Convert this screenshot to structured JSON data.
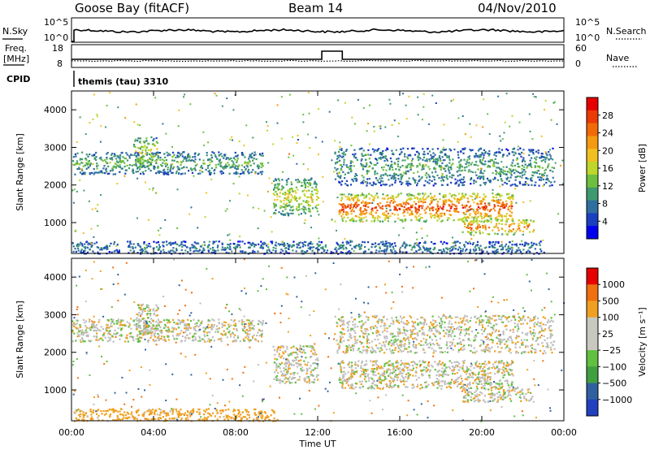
{
  "header": {
    "station": "Goose Bay (fitACF)",
    "beam": "Beam 14",
    "date": "04/Nov/2010"
  },
  "noise_panel": {
    "left_label": "N.Sky",
    "right_label": "N.Search",
    "ticks": [
      "10^5",
      "10^0"
    ]
  },
  "freq_panel": {
    "left_label_1": "Freq.",
    "left_label_2": "[MHz]",
    "left_ticks": [
      "18",
      "8"
    ],
    "right_label": "Nave",
    "right_ticks": [
      "60",
      "0"
    ]
  },
  "cpid": {
    "label": "CPID",
    "program": "themis (tau) 3310"
  },
  "time_axis": {
    "label": "Time UT",
    "ticks": [
      "00:00",
      "04:00",
      "08:00",
      "12:00",
      "16:00",
      "20:00",
      "00:00"
    ]
  },
  "colors": {
    "power_scale": [
      "#0000ee",
      "#1a3fbf",
      "#2e6fa0",
      "#3f9a6f",
      "#6fbf3f",
      "#bfd62a",
      "#f0c020",
      "#f59a10",
      "#f26a08",
      "#ec3a04",
      "#e60000"
    ],
    "velocity_scale": [
      "#2040c0",
      "#3060a0",
      "#40a040",
      "#60c040",
      "#c8c8c0",
      "#c8c8c0",
      "#f0a020",
      "#f07010",
      "#e60000"
    ],
    "ground_scatter": "#bebebe"
  },
  "chart_data": [
    {
      "type": "heatmap",
      "panel": "power",
      "ylabel": "Slant Range [km]",
      "yticks": [
        1000,
        2000,
        3000,
        4000
      ],
      "ylim": [
        180,
        4500
      ],
      "xlim_hours": [
        0,
        24
      ],
      "colorbar": {
        "label": "Power [dB]",
        "ticks": [
          "4",
          "8",
          "12",
          "16",
          "20",
          "24",
          "28"
        ],
        "range": [
          0,
          30
        ]
      },
      "features": [
        {
          "t_start": 0.0,
          "t_end": 9.3,
          "r_min": 2300,
          "r_max": 2900,
          "level": 10
        },
        {
          "t_start": 3.0,
          "t_end": 4.2,
          "r_min": 2500,
          "r_max": 3300,
          "level": 14
        },
        {
          "t_start": 0.0,
          "t_end": 23.0,
          "r_min": 190,
          "r_max": 520,
          "level": 7
        },
        {
          "t_start": 9.8,
          "t_end": 12.0,
          "r_min": 1200,
          "r_max": 2200,
          "level": 14
        },
        {
          "t_start": 13.0,
          "t_end": 21.5,
          "r_min": 1050,
          "r_max": 1800,
          "level": 22
        },
        {
          "t_start": 19.0,
          "t_end": 22.5,
          "r_min": 700,
          "r_max": 1100,
          "level": 20
        },
        {
          "t_start": 12.8,
          "t_end": 23.5,
          "r_min": 2000,
          "r_max": 3000,
          "level": 9
        }
      ]
    },
    {
      "type": "heatmap",
      "panel": "velocity",
      "ylabel": "Slant Range [km]",
      "yticks": [
        1000,
        2000,
        3000,
        4000
      ],
      "ylim": [
        180,
        4500
      ],
      "xlim_hours": [
        0,
        24
      ],
      "colorbar": {
        "label": "Velocity [m s⁻¹]",
        "ticks": [
          "1000",
          "500",
          "100",
          "25",
          "−25",
          "−100",
          "−500",
          "−1000"
        ]
      },
      "features": [
        {
          "t_start": 0.0,
          "t_end": 9.3,
          "r_min": 2300,
          "r_max": 2900,
          "velocity": 0
        },
        {
          "t_start": 3.0,
          "t_end": 4.2,
          "r_min": 2500,
          "r_max": 3300,
          "velocity": 0
        },
        {
          "t_start": 0.0,
          "t_end": 10.0,
          "r_min": 190,
          "r_max": 520,
          "velocity": -60
        },
        {
          "t_start": 9.8,
          "t_end": 12.0,
          "r_min": 1200,
          "r_max": 2200,
          "velocity": 0
        },
        {
          "t_start": 13.0,
          "t_end": 21.5,
          "r_min": 1050,
          "r_max": 1800,
          "velocity": 0
        },
        {
          "t_start": 19.0,
          "t_end": 22.5,
          "r_min": 700,
          "r_max": 1100,
          "velocity": 0
        },
        {
          "t_start": 12.8,
          "t_end": 23.5,
          "r_min": 2000,
          "r_max": 3000,
          "velocity": 0
        }
      ]
    }
  ]
}
